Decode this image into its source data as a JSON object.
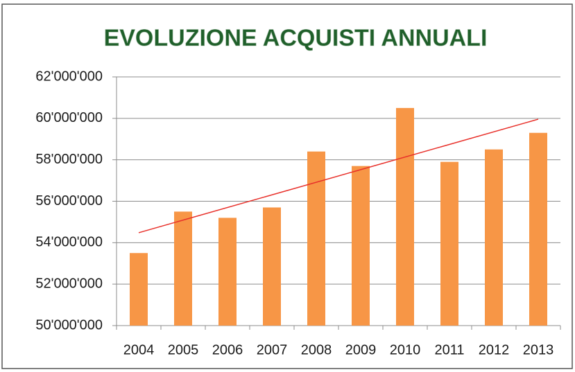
{
  "chart_data": {
    "type": "bar",
    "title": "EVOLUZIONE ACQUISTI ANNUALI",
    "categories": [
      "2004",
      "2005",
      "2006",
      "2007",
      "2008",
      "2009",
      "2010",
      "2011",
      "2012",
      "2013"
    ],
    "values": [
      53500000,
      55500000,
      55200000,
      55700000,
      58400000,
      57700000,
      60500000,
      57900000,
      58500000,
      59300000
    ],
    "color": "#f79646",
    "ylim": [
      50000000,
      62000000
    ],
    "yticks": [
      {
        "value": 50000000,
        "label": "50'000'000"
      },
      {
        "value": 52000000,
        "label": "52'000'000"
      },
      {
        "value": 54000000,
        "label": "54'000'000"
      },
      {
        "value": 56000000,
        "label": "56'000'000"
      },
      {
        "value": 58000000,
        "label": "58'000'000"
      },
      {
        "value": 60000000,
        "label": "60'000'000"
      },
      {
        "value": 62000000,
        "label": "62'000'000"
      }
    ],
    "grid": true,
    "trendline": {
      "type": "linear",
      "color": "#e8302a"
    }
  }
}
